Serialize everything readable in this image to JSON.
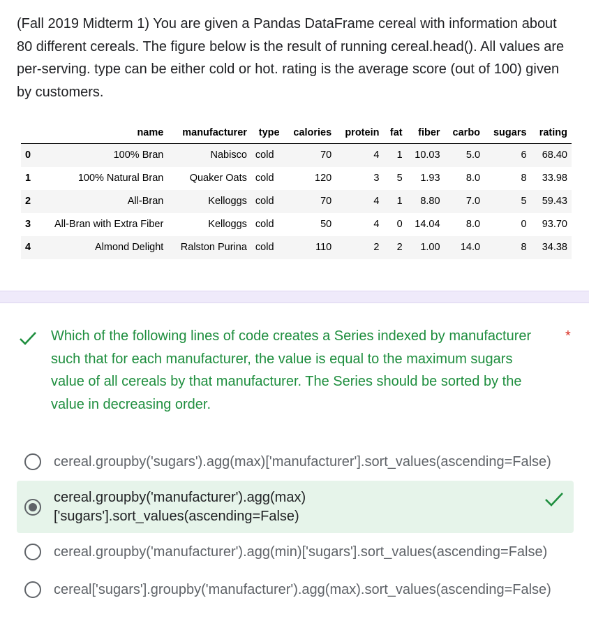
{
  "intro": {
    "text": "(Fall 2019 Midterm 1) You are given a Pandas DataFrame cereal with information about 80 different cereals. The figure below is the result of running cereal.head(). All values are per-serving. type can be either cold or hot. rating is the average score (out of 100) given by customers."
  },
  "table": {
    "columns": [
      "name",
      "manufacturer",
      "type",
      "calories",
      "protein",
      "fat",
      "fiber",
      "carbo",
      "sugars",
      "rating"
    ],
    "rows": [
      {
        "index": "0",
        "cells": [
          "100% Bran",
          "Nabisco",
          "cold",
          "70",
          "4",
          "1",
          "10.03",
          "5.0",
          "6",
          "68.40"
        ]
      },
      {
        "index": "1",
        "cells": [
          "100% Natural Bran",
          "Quaker Oats",
          "cold",
          "120",
          "3",
          "5",
          "1.93",
          "8.0",
          "8",
          "33.98"
        ]
      },
      {
        "index": "2",
        "cells": [
          "All-Bran",
          "Kelloggs",
          "cold",
          "70",
          "4",
          "1",
          "8.80",
          "7.0",
          "5",
          "59.43"
        ]
      },
      {
        "index": "3",
        "cells": [
          "All-Bran with Extra Fiber",
          "Kelloggs",
          "cold",
          "50",
          "4",
          "0",
          "14.04",
          "8.0",
          "0",
          "93.70"
        ]
      },
      {
        "index": "4",
        "cells": [
          "Almond Delight",
          "Ralston Purina",
          "cold",
          "110",
          "2",
          "2",
          "1.00",
          "14.0",
          "8",
          "34.38"
        ]
      }
    ]
  },
  "question": {
    "text": "Which of the following lines of code creates a Series indexed by manufacturer such that for each manufacturer, the value is equal to the maximum sugars value of all cereals by that manufacturer. The Series should be sorted by the value in decreasing order.",
    "required_mark": "*",
    "status_icon": "check-icon",
    "correct_color": "#1e8e3e"
  },
  "options": [
    {
      "text": "cereal.groupby('sugars').agg(max)['manufacturer'].sort_values(ascending=False)",
      "selected": false
    },
    {
      "text": "cereal.groupby('manufacturer').agg(max)\n['sugars'].sort_values(ascending=False)",
      "selected": true,
      "correct": true
    },
    {
      "text": "cereal.groupby('manufacturer').agg(min)['sugars'].sort_values(ascending=False)",
      "selected": false
    },
    {
      "text": "cereal['sugars'].groupby('manufacturer').agg(max).sort_values(ascending=False)",
      "selected": false
    }
  ]
}
